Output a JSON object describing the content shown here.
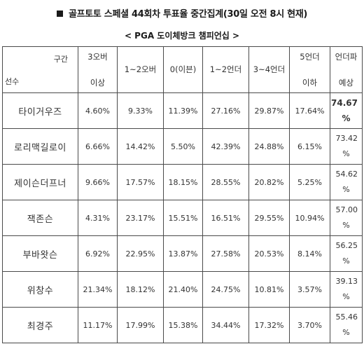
{
  "title": "골프토토 스페셜 44회차 투표율 중간집계(30일 오전 8시 현재)",
  "subtitle": "< PGA 도이체방크 챔피언십 >",
  "header": {
    "corner_top": "구간",
    "corner_bottom": "선수",
    "columns": [
      [
        "3오버",
        "이상"
      ],
      [
        "1~2오버"
      ],
      [
        "0(이븐)"
      ],
      [
        "1~2언더"
      ],
      [
        "3~4언더"
      ],
      [
        "5언더",
        "이하"
      ],
      [
        "언더파",
        "예상"
      ]
    ]
  },
  "rows": [
    {
      "player": "타이거우즈",
      "values": [
        "4.60%",
        "9.33%",
        "11.39%",
        "27.16%",
        "29.87%",
        "17.64%"
      ],
      "bold_index": 4,
      "prediction": "74.67",
      "pred_unit": "%",
      "pred_bold": true
    },
    {
      "player": "로리맥길로이",
      "values": [
        "6.66%",
        "14.42%",
        "5.50%",
        "42.39%",
        "24.88%",
        "6.15%"
      ],
      "bold_index": 3,
      "prediction": "73.42",
      "pred_unit": "%",
      "pred_bold": false
    },
    {
      "player": "제이슨더프너",
      "values": [
        "9.66%",
        "17.57%",
        "18.15%",
        "28.55%",
        "20.82%",
        "5.25%"
      ],
      "bold_index": 3,
      "prediction": "54.62",
      "pred_unit": "%",
      "pred_bold": false
    },
    {
      "player": "잭존슨",
      "values": [
        "4.31%",
        "23.17%",
        "15.51%",
        "16.51%",
        "29.55%",
        "10.94%"
      ],
      "bold_index": 4,
      "prediction": "57.00",
      "pred_unit": "%",
      "pred_bold": false
    },
    {
      "player": "부바왓슨",
      "values": [
        "6.92%",
        "22.95%",
        "13.87%",
        "27.58%",
        "20.53%",
        "8.14%"
      ],
      "bold_index": 3,
      "prediction": "56.25",
      "pred_unit": "%",
      "pred_bold": false
    },
    {
      "player": "위창수",
      "values": [
        "21.34%",
        "18.12%",
        "21.40%",
        "24.75%",
        "10.81%",
        "3.57%"
      ],
      "bold_index": 3,
      "prediction": "39.13",
      "pred_unit": "%",
      "pred_bold": false
    },
    {
      "player": "최경주",
      "values": [
        "11.17%",
        "17.99%",
        "15.38%",
        "34.44%",
        "17.32%",
        "3.70%"
      ],
      "bold_index": 3,
      "prediction": "55.46",
      "pred_unit": "%",
      "pred_bold": false
    }
  ]
}
